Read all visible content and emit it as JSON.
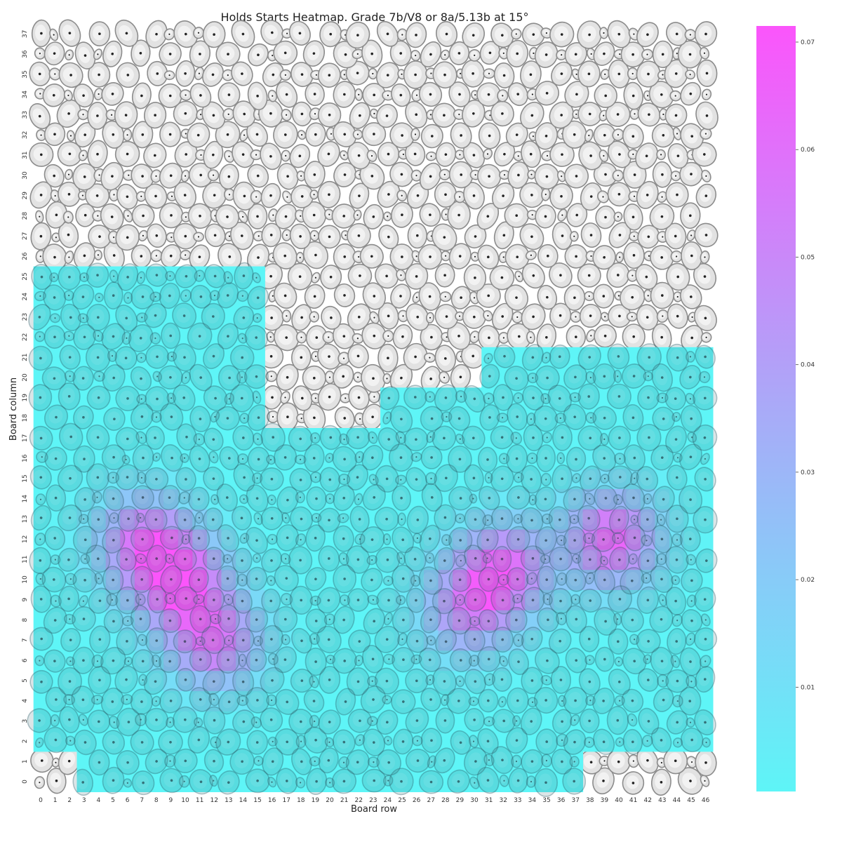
{
  "chart_data": {
    "type": "heatmap",
    "title": "Holds Starts Heatmap. Grade 7b/V8 or 8a/5.13b at 15°",
    "xlabel": "Board row",
    "ylabel": "Board column",
    "x_ticks": [
      "0",
      "1",
      "2",
      "3",
      "4",
      "5",
      "6",
      "7",
      "8",
      "9",
      "10",
      "11",
      "12",
      "13",
      "14",
      "15",
      "16",
      "17",
      "18",
      "19",
      "20",
      "21",
      "22",
      "23",
      "24",
      "25",
      "26",
      "27",
      "28",
      "29",
      "30",
      "31",
      "32",
      "33",
      "34",
      "35",
      "36",
      "37",
      "38",
      "39",
      "40",
      "41",
      "42",
      "43",
      "44",
      "45",
      "46"
    ],
    "y_ticks": [
      "0",
      "1",
      "2",
      "3",
      "4",
      "5",
      "6",
      "7",
      "8",
      "9",
      "10",
      "11",
      "12",
      "13",
      "14",
      "15",
      "16",
      "17",
      "18",
      "19",
      "20",
      "21",
      "22",
      "23",
      "24",
      "25",
      "26",
      "27",
      "28",
      "29",
      "30",
      "31",
      "32",
      "33",
      "34",
      "35",
      "36",
      "37"
    ],
    "colorbar": {
      "range": [
        0.0003,
        0.0715
      ],
      "ticks": [
        "0.01",
        "0.02",
        "0.03",
        "0.04",
        "0.05",
        "0.06",
        "0.07"
      ],
      "tick_values": [
        0.01,
        0.02,
        0.03,
        0.04,
        0.05,
        0.06,
        0.07
      ],
      "low_color": "#5ef5f7",
      "high_color": "#fb55fb"
    },
    "hotspots": [
      {
        "x": 9.5,
        "y": 10.0,
        "value": 0.068
      },
      {
        "x": 12.0,
        "y": 7.0,
        "value": 0.058
      },
      {
        "x": 7.0,
        "y": 12.0,
        "value": 0.052
      },
      {
        "x": 32.0,
        "y": 10.5,
        "value": 0.062
      },
      {
        "x": 39.5,
        "y": 12.0,
        "value": 0.066
      },
      {
        "x": 29.5,
        "y": 8.5,
        "value": 0.045
      }
    ],
    "covered_region": {
      "left_block": {
        "x_range": [
          0,
          15
        ],
        "y_range": [
          2,
          25
        ]
      },
      "bottom_strip": {
        "x_range": [
          3,
          37
        ],
        "y_range": [
          0,
          2
        ]
      },
      "center_block": {
        "x_range": [
          16,
          23
        ],
        "y_range": [
          1,
          17
        ]
      },
      "right_block": {
        "x_range": [
          24,
          46
        ],
        "y_range": [
          2,
          19
        ]
      },
      "right_upper": {
        "x_range": [
          31,
          46
        ],
        "y_range": [
          20,
          21
        ]
      }
    }
  }
}
